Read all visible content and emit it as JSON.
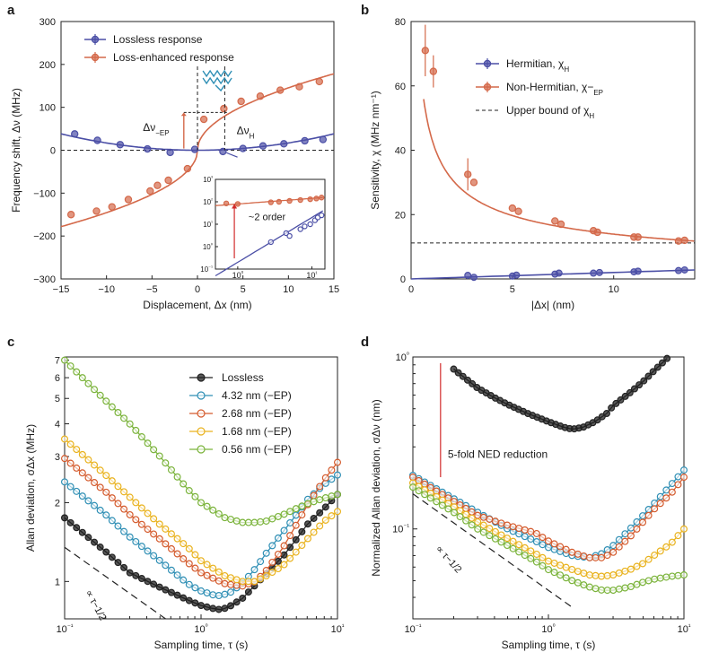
{
  "colors": {
    "blue": "#4b4fa6",
    "orange": "#d4694a",
    "black": "#222222",
    "teal": "#2f8fb5",
    "redorange": "#d45a2c",
    "gold": "#e9b21d",
    "green": "#7ab33a",
    "red": "#d12a2a"
  },
  "chart_data": [
    {
      "panel": "a",
      "type": "scatter",
      "xlabel": "Displacement, Δx (nm)",
      "ylabel": "Frequency shift, Δν (MHz)",
      "xlim": [
        -15,
        15
      ],
      "ylim": [
        -300,
        300
      ],
      "xticks": [
        "−15",
        "−10",
        "−5",
        "0",
        "5",
        "10",
        "15"
      ],
      "yticks": [
        "−300",
        "−200",
        "−100",
        "0",
        "100",
        "200",
        "300"
      ],
      "legend": [
        "Lossless response",
        "Loss-enhanced response"
      ],
      "annotations": [
        "Δν−EP",
        "ΔνH"
      ],
      "series": [
        {
          "name": "Lossless response",
          "x": [
            -13.5,
            -11,
            -8.5,
            -5.5,
            -3,
            -0.3,
            2.8,
            5,
            7.2,
            9.5,
            11.8,
            13.8
          ],
          "y": [
            38,
            23,
            13,
            3,
            -5,
            2,
            -3,
            4,
            10,
            15,
            22,
            25
          ]
        },
        {
          "name": "Loss-enhanced response",
          "x": [
            -13.9,
            -11.1,
            -9.4,
            -7.6,
            -5.2,
            -4.4,
            -3.2,
            -1.1,
            0.7,
            2.9,
            4.8,
            6.9,
            9.1,
            11.2,
            13.4
          ],
          "y": [
            -150,
            -142,
            -132,
            -115,
            -95,
            -82,
            -70,
            -43,
            72,
            97,
            114,
            126,
            140,
            148,
            160
          ]
        }
      ],
      "inset": {
        "xlim": [
          0.5,
          15
        ],
        "ylim": [
          0.1,
          1000
        ],
        "xticks": [
          "10⁰",
          "10¹"
        ],
        "yticks": [
          "10⁻¹",
          "10⁰",
          "10¹",
          "10²",
          "10³"
        ],
        "annotation": "~2 order",
        "series": [
          {
            "name": "Loss-enhanced response",
            "x": [
              0.7,
              1,
              2.8,
              3.6,
              5,
              7,
              9.5,
              11.5,
              13.5
            ],
            "y": [
              85,
              80,
              95,
              100,
              110,
              120,
              130,
              140,
              155
            ]
          },
          {
            "name": "Lossless response",
            "x": [
              2.8,
              4.5,
              5,
              7,
              8,
              9.5,
              11,
              12,
              13.5
            ],
            "y": [
              1.6,
              4,
              3,
              6,
              8,
              10,
              15,
              20,
              25
            ]
          }
        ]
      }
    },
    {
      "panel": "b",
      "type": "scatter",
      "xlabel": "|Δx| (nm)",
      "ylabel": "Sensitivity, χ (MHz nm⁻¹)",
      "xlim": [
        0,
        14
      ],
      "ylim": [
        0,
        80
      ],
      "xticks": [
        "0",
        "5",
        "10"
      ],
      "yticks": [
        "0",
        "20",
        "40",
        "60",
        "80"
      ],
      "legend": [
        "Hermitian, χH",
        "Non-Hermitian, χ−EP",
        "Upper bound of χH"
      ],
      "upper_bound": 11.2,
      "series": [
        {
          "name": "Hermitian, χH",
          "x": [
            2.8,
            3.1,
            5,
            5.2,
            7.1,
            7.3,
            9,
            9.3,
            11,
            11.2,
            13.2,
            13.5
          ],
          "y": [
            1.1,
            0.5,
            0.9,
            1.2,
            1.5,
            1.8,
            1.8,
            2,
            2.2,
            2.4,
            2.6,
            2.8
          ]
        },
        {
          "name": "Non-Hermitian, χ−EP",
          "x": [
            0.7,
            1.1,
            2.8,
            3.1,
            5,
            5.3,
            7.1,
            7.4,
            9,
            9.2,
            11,
            11.2,
            13.2,
            13.5
          ],
          "y": [
            71,
            64.5,
            32.5,
            30,
            22,
            21,
            18,
            17,
            15,
            14.5,
            13,
            13,
            11.8,
            12
          ]
        }
      ]
    },
    {
      "panel": "c",
      "type": "line",
      "xlabel": "Sampling time, τ (s)",
      "ylabel": "Allan deviation, σΔx (MHz)",
      "xlim": [
        0.1,
        10
      ],
      "ylim": [
        0.72,
        7.2
      ],
      "xticks": [
        "10⁻¹",
        "10⁰",
        "10¹"
      ],
      "yticks": [
        "1",
        "2",
        "3",
        "4",
        "5",
        "6",
        "7"
      ],
      "slope_label": "∝ τ−1/2",
      "series": [
        {
          "name": "Lossless",
          "x": [
            0.1,
            0.2,
            0.3,
            0.5,
            0.8,
            1,
            1.2,
            1.4,
            1.6,
            2,
            2.5,
            3,
            4,
            5,
            6,
            8,
            10
          ],
          "y": [
            1.75,
            1.3,
            1.08,
            0.95,
            0.85,
            0.81,
            0.79,
            0.78,
            0.8,
            0.86,
            0.97,
            1.07,
            1.25,
            1.45,
            1.65,
            1.9,
            2.15
          ]
        },
        {
          "name": "4.32 nm (−EP)",
          "x": [
            0.1,
            0.2,
            0.3,
            0.5,
            0.8,
            1,
            1.3,
            1.6,
            2,
            2.5,
            3,
            4,
            5,
            6,
            8,
            10
          ],
          "y": [
            2.4,
            1.8,
            1.48,
            1.2,
            0.98,
            0.92,
            0.88,
            0.9,
            0.98,
            1.12,
            1.28,
            1.55,
            1.8,
            2.05,
            2.35,
            2.55
          ]
        },
        {
          "name": "2.68 nm (−EP)",
          "x": [
            0.1,
            0.2,
            0.3,
            0.5,
            0.8,
            1,
            1.5,
            2,
            2.5,
            3,
            4,
            5,
            6,
            8,
            10
          ],
          "y": [
            2.95,
            2.2,
            1.8,
            1.45,
            1.18,
            1.08,
            0.98,
            0.96,
            1.0,
            1.1,
            1.35,
            1.65,
            1.95,
            2.45,
            2.85
          ]
        },
        {
          "name": "1.68 nm (−EP)",
          "x": [
            0.1,
            0.2,
            0.3,
            0.5,
            0.8,
            1,
            1.5,
            2,
            2.5,
            3,
            4,
            5,
            6,
            8,
            10
          ],
          "y": [
            3.5,
            2.55,
            2.1,
            1.65,
            1.35,
            1.2,
            1.05,
            1.0,
            1.0,
            1.05,
            1.15,
            1.3,
            1.45,
            1.7,
            1.85
          ]
        },
        {
          "name": "0.56 nm (−EP)",
          "x": [
            0.1,
            0.2,
            0.3,
            0.5,
            0.8,
            1,
            1.5,
            2,
            2.5,
            3,
            4,
            5,
            6,
            8,
            10
          ],
          "y": [
            7.0,
            4.9,
            4.0,
            3.0,
            2.25,
            2.0,
            1.75,
            1.68,
            1.68,
            1.7,
            1.8,
            1.9,
            1.98,
            2.08,
            2.15
          ]
        }
      ]
    },
    {
      "panel": "d",
      "type": "line",
      "xlabel": "Sampling time, τ (s)",
      "ylabel": "Normalized Allan deviation, σΔν (nm)",
      "xlim": [
        0.1,
        10
      ],
      "ylim": [
        0.03,
        1.0
      ],
      "xticks": [
        "10⁻¹",
        "10⁰",
        "10¹"
      ],
      "yticks": [
        "10⁻¹",
        "10⁰"
      ],
      "slope_label": "∝ τ−1/2",
      "annotation": "5-fold NED reduction",
      "series": [
        {
          "name": "Lossless",
          "x": [
            0.2,
            0.3,
            0.4,
            0.5,
            0.7,
            1,
            1.3,
            1.5,
            1.8,
            2.2,
            2.7,
            3,
            4,
            5,
            6,
            7.5
          ],
          "y": [
            0.85,
            0.66,
            0.58,
            0.53,
            0.47,
            0.42,
            0.39,
            0.38,
            0.39,
            0.42,
            0.47,
            0.52,
            0.62,
            0.72,
            0.83,
            0.98
          ]
        },
        {
          "name": "4.32 nm (−EP)",
          "x": [
            0.1,
            0.2,
            0.3,
            0.5,
            0.8,
            1,
            1.5,
            2,
            2.5,
            3,
            4,
            5,
            6,
            8,
            10
          ],
          "y": [
            0.205,
            0.15,
            0.125,
            0.1,
            0.085,
            0.078,
            0.07,
            0.068,
            0.072,
            0.08,
            0.1,
            0.12,
            0.14,
            0.18,
            0.22
          ]
        },
        {
          "name": "2.68 nm (−EP)",
          "x": [
            0.1,
            0.2,
            0.3,
            0.5,
            0.8,
            1,
            1.5,
            2,
            2.5,
            3,
            4,
            5,
            6,
            8,
            10
          ],
          "y": [
            0.2,
            0.145,
            0.12,
            0.105,
            0.095,
            0.085,
            0.073,
            0.068,
            0.068,
            0.073,
            0.09,
            0.11,
            0.13,
            0.16,
            0.2
          ]
        },
        {
          "name": "1.68 nm (−EP)",
          "x": [
            0.1,
            0.2,
            0.3,
            0.5,
            0.8,
            1,
            1.5,
            2,
            2.5,
            3,
            4,
            5,
            6,
            8,
            10
          ],
          "y": [
            0.185,
            0.135,
            0.11,
            0.088,
            0.072,
            0.065,
            0.058,
            0.054,
            0.053,
            0.054,
            0.058,
            0.063,
            0.07,
            0.082,
            0.1
          ]
        },
        {
          "name": "0.56 nm (−EP)",
          "x": [
            0.1,
            0.2,
            0.3,
            0.5,
            0.8,
            1,
            1.5,
            2,
            2.5,
            3,
            4,
            5,
            6,
            8,
            10
          ],
          "y": [
            0.175,
            0.125,
            0.1,
            0.08,
            0.065,
            0.058,
            0.05,
            0.046,
            0.044,
            0.044,
            0.046,
            0.049,
            0.051,
            0.053,
            0.054
          ]
        }
      ]
    }
  ],
  "panels": [
    "a",
    "b",
    "c",
    "d"
  ]
}
